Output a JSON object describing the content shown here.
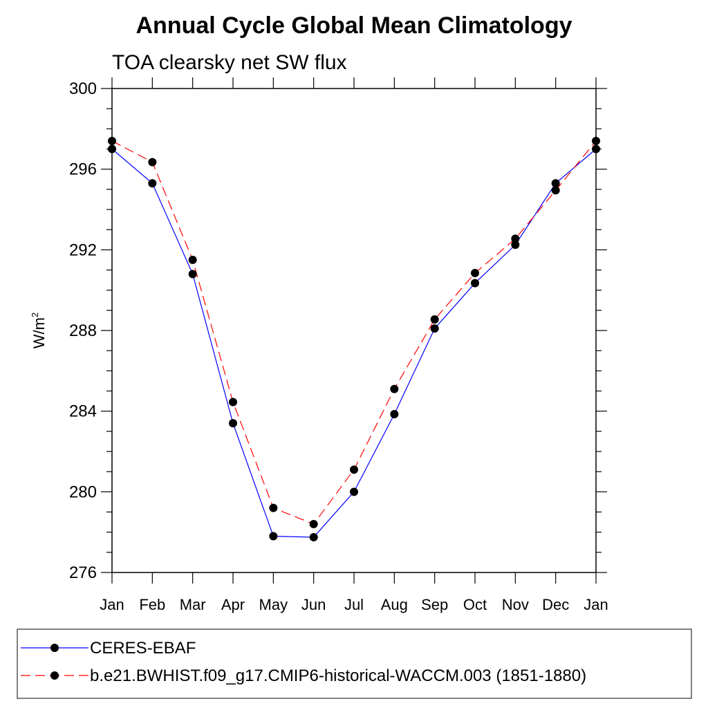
{
  "chart_data": {
    "type": "line",
    "title": "Annual Cycle Global Mean Climatology",
    "subtitle": "TOA clearsky net SW flux",
    "ylabel": "W/m",
    "ylabel_sup": "2",
    "ylim": [
      276,
      300
    ],
    "yticks": [
      "276",
      "280",
      "284",
      "288",
      "292",
      "296",
      "300"
    ],
    "categories": [
      "Jan",
      "Feb",
      "Mar",
      "Apr",
      "May",
      "Jun",
      "Jul",
      "Aug",
      "Sep",
      "Oct",
      "Nov",
      "Dec",
      "Jan"
    ],
    "grid": false,
    "legend_position": "bottom",
    "series": [
      {
        "name": "CERES-EBAF",
        "color": "#0000ff",
        "dash": "solid",
        "marker": "filled-circle",
        "values": [
          297.0,
          295.3,
          290.8,
          283.4,
          277.8,
          277.75,
          280.0,
          283.85,
          288.1,
          290.35,
          292.25,
          295.3,
          297.0
        ]
      },
      {
        "name": "b.e21.BWHIST.f09_g17.CMIP6-historical-WACCM.003 (1851-1880)",
        "color": "#ff0000",
        "dash": "dashed",
        "marker": "filled-circle",
        "values": [
          297.4,
          296.35,
          291.5,
          284.45,
          279.2,
          278.4,
          281.1,
          285.1,
          288.55,
          290.85,
          292.55,
          294.95,
          297.4
        ]
      }
    ]
  }
}
